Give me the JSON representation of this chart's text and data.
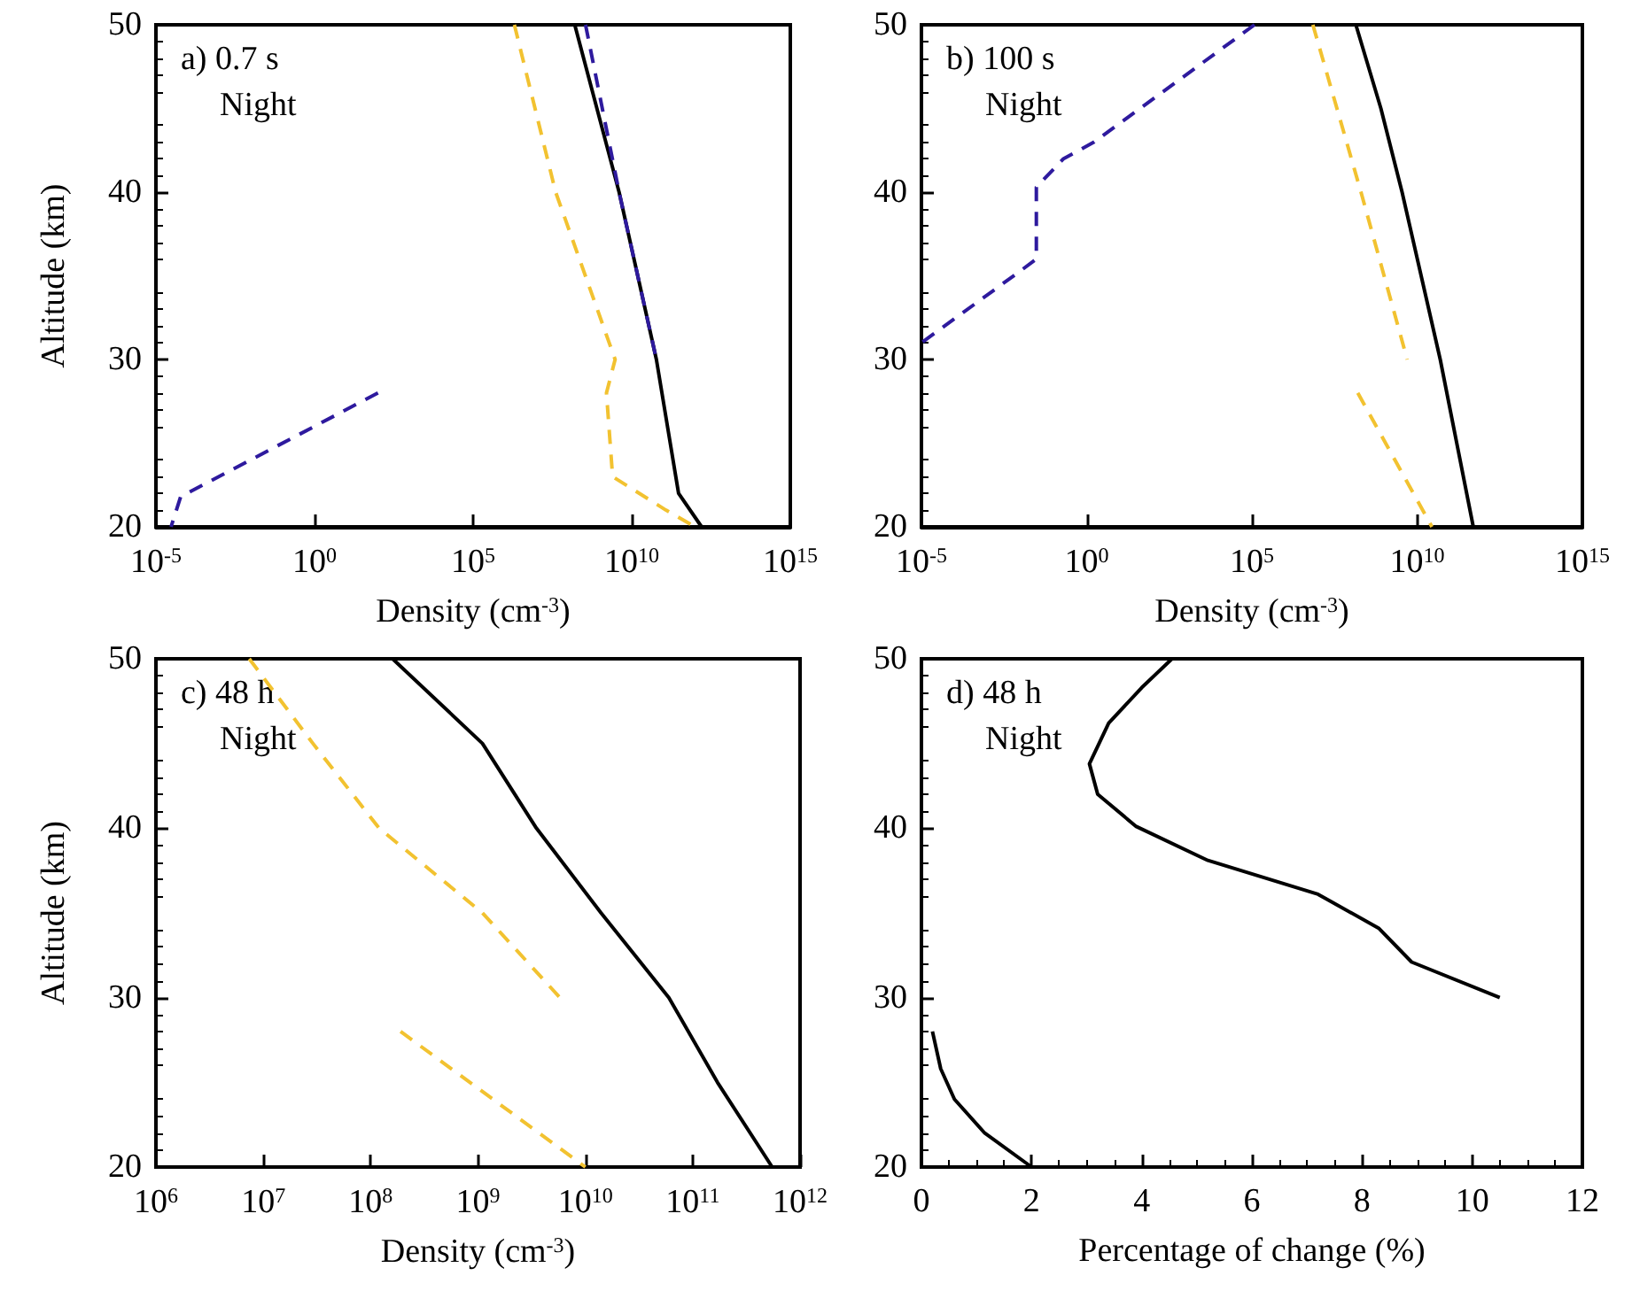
{
  "chart_data": [
    {
      "type": "line",
      "annotations": [
        "a) 0.7 s",
        "Night"
      ],
      "xlabel": "Density (cm$^{-3}$)",
      "ylabel": "Altitude (km)",
      "log": "x",
      "marker": "none",
      "xlim": [
        1e-05,
        1000000000000000.0
      ],
      "xticks": [
        {
          "value": 1e-05,
          "label": "10$^{-5}$"
        },
        {
          "value": 1,
          "label": "10$^{0}$"
        },
        {
          "value": 100000.0,
          "label": "10$^{5}$"
        },
        {
          "value": 10000000000.0,
          "label": "10$^{10}$"
        },
        {
          "value": 1000000000000000.0,
          "label": "10$^{15}$"
        }
      ],
      "ylim": [
        20,
        50
      ],
      "yticks": [
        20,
        30,
        40,
        50
      ],
      "series": [
        {
          "color": "#000000",
          "line_style": "solid",
          "x": [
            160000000.0,
            4000000000.0,
            60000000000.0,
            300000000000.0,
            1600000000000.0
          ],
          "values": [
            50,
            40,
            30,
            22,
            20
          ]
        },
        {
          "color": "#2e1a9e",
          "line_style": "dashed",
          "x": [
            350000000.0,
            4000000000.0,
            60000000000.0,
            null,
            100,
            6e-05,
            3e-05
          ],
          "values": [
            50,
            40,
            30,
            null,
            28,
            21.8,
            20
          ]
        },
        {
          "color": "#f2c230",
          "line_style": "dashed",
          "x": [
            2000000.0,
            40000000.0,
            3000000000.0,
            1600000000.0,
            2500000000.0,
            120000000000.0,
            1000000000000.0
          ],
          "values": [
            50,
            40,
            30,
            28,
            23,
            21,
            20
          ]
        }
      ]
    },
    {
      "type": "line",
      "annotations": [
        "b) 100 s",
        "Night"
      ],
      "xlabel": "Density (cm$^{-3}$)",
      "log": "x",
      "marker": "none",
      "xlim": [
        1e-05,
        1000000000000000.0
      ],
      "xticks": [
        {
          "value": 1e-05,
          "label": "10$^{-5}$"
        },
        {
          "value": 1,
          "label": "10$^{0}$"
        },
        {
          "value": 100000.0,
          "label": "10$^{5}$"
        },
        {
          "value": 10000000000.0,
          "label": "10$^{10}$"
        },
        {
          "value": 1000000000000000.0,
          "label": "10$^{15}$"
        }
      ],
      "ylim": [
        20,
        50
      ],
      "yticks": [
        20,
        30,
        40,
        50
      ],
      "series": [
        {
          "color": "#000000",
          "line_style": "solid",
          "x": [
            140000000.0,
            800000000.0,
            3500000000.0,
            50000000000.0,
            500000000000.0
          ],
          "values": [
            50,
            45,
            40,
            30,
            20
          ]
        },
        {
          "color": "#2e1a9e",
          "line_style": "dashed",
          "x": [
            120000.0,
            1.7,
            0.2,
            0.03,
            0.03,
            0.01,
            1e-05
          ],
          "values": [
            50,
            43,
            42,
            40.3,
            36,
            35.3,
            31
          ]
        },
        {
          "color": "#f2c230",
          "line_style": "dashed",
          "x": [
            7000000.0,
            200000000.0,
            5000000000.0,
            null,
            160000000.0,
            28000000000.0
          ],
          "values": [
            50,
            40,
            30,
            null,
            28,
            20
          ]
        }
      ]
    },
    {
      "type": "line",
      "annotations": [
        "c) 48 h",
        "Night"
      ],
      "xlabel": "Density (cm$^{-3}$)",
      "ylabel": "Altitude (km)",
      "log": "x",
      "marker": "none",
      "xlim": [
        1000000.0,
        1000000000000.0
      ],
      "xticks": [
        {
          "value": 1000000.0,
          "label": "10$^{6}$"
        },
        {
          "value": 10000000.0,
          "label": "10$^{7}$"
        },
        {
          "value": 100000000.0,
          "label": "10$^{8}$"
        },
        {
          "value": 1000000000.0,
          "label": "10$^{9}$"
        },
        {
          "value": 10000000000.0,
          "label": "10$^{10}$"
        },
        {
          "value": 100000000000.0,
          "label": "10$^{11}$"
        },
        {
          "value": 1000000000000.0,
          "label": "10$^{12}$"
        }
      ],
      "ylim": [
        20,
        50
      ],
      "yticks": [
        20,
        30,
        40,
        50
      ],
      "series": [
        {
          "color": "#000000",
          "line_style": "solid",
          "x": [
            160000000.0,
            1100000000.0,
            3500000000.0,
            14000000000.0,
            60000000000.0,
            170000000000.0,
            550000000000.0
          ],
          "values": [
            50,
            45,
            40,
            35,
            30,
            25,
            20
          ]
        },
        {
          "color": "#f2c230",
          "line_style": "dashed",
          "x": [
            7400000.0,
            29000000.0,
            120000000.0,
            1100000000.0,
            5800000000.0,
            null,
            190000000.0,
            10000000000.0
          ],
          "values": [
            50,
            45,
            40,
            35,
            30,
            null,
            28,
            20
          ]
        }
      ]
    },
    {
      "type": "line",
      "annotations": [
        "d) 48 h",
        "Night"
      ],
      "xlabel": "Percentage of change (%)",
      "marker": "none",
      "xlim": [
        0,
        12
      ],
      "xticks": [
        0,
        2,
        4,
        6,
        8,
        10,
        12
      ],
      "ylim": [
        20,
        50
      ],
      "yticks": [
        20,
        30,
        40,
        50
      ],
      "series": [
        {
          "color": "#000000",
          "line_style": "solid",
          "x": [
            4.55,
            4.0,
            3.4,
            3.05,
            3.2,
            3.9,
            5.2,
            7.2,
            8.3,
            8.9,
            10.5,
            null,
            0.2,
            0.35,
            0.6,
            1.15,
            2.0
          ],
          "values": [
            50,
            48.3,
            46.2,
            43.8,
            42,
            40.1,
            38.1,
            36.1,
            34.1,
            32.1,
            30,
            null,
            28,
            25.8,
            24,
            22,
            20
          ]
        }
      ]
    }
  ]
}
